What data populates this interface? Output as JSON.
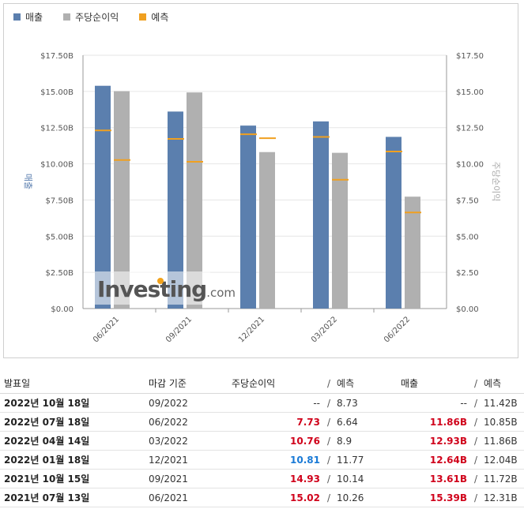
{
  "legend": {
    "revenue": "매출",
    "eps": "주당순이익",
    "forecast": "예측"
  },
  "colors": {
    "revenue": "#5b7fae",
    "eps": "#b0b0b0",
    "forecast": "#f0a020",
    "miss": "#d0021b",
    "beat": "#1a7ad6"
  },
  "watermark": {
    "brand": "Investing",
    "suffix": ".com"
  },
  "chart_data": {
    "type": "bar",
    "categories": [
      "06/2021",
      "09/2021",
      "12/2021",
      "03/2022",
      "06/2022"
    ],
    "series": [
      {
        "name": "매출",
        "axis": "left",
        "values": [
          15.39,
          13.61,
          12.64,
          12.93,
          11.86
        ],
        "forecast": [
          12.31,
          11.72,
          12.04,
          11.86,
          10.85
        ]
      },
      {
        "name": "주당순이익",
        "axis": "right",
        "values": [
          15.02,
          14.93,
          10.81,
          10.76,
          7.73
        ],
        "forecast": [
          10.26,
          10.14,
          11.77,
          8.9,
          6.64
        ]
      }
    ],
    "ylabel": "매출",
    "ylabel_right": "주당순이익",
    "ylim": [
      0,
      17.5
    ],
    "ylim_right": [
      0,
      17.5
    ],
    "yticks": [
      "$0.00",
      "$2.50B",
      "$5.00B",
      "$7.50B",
      "$10.00B",
      "$12.50B",
      "$15.00B",
      "$17.50B"
    ],
    "yticks_right": [
      "$0.00",
      "$2.50",
      "$5.00",
      "$7.50",
      "$10.00",
      "$12.50",
      "$15.00",
      "$17.50"
    ],
    "legend_position": "top-left",
    "grid": true
  },
  "table": {
    "headers": {
      "date": "발표일",
      "period": "마감 기준",
      "eps": "주당순이익",
      "eps_forecast": "예측",
      "revenue": "매출",
      "revenue_forecast": "예측",
      "slash": "/"
    },
    "rows": [
      {
        "date": "2022년 10월 18일",
        "period": "09/2022",
        "eps": "--",
        "eps_forecast": "8.73",
        "revenue": "--",
        "revenue_forecast": "11.42B",
        "eps_style": "neutral",
        "rev_style": "neutral"
      },
      {
        "date": "2022년 07월 18일",
        "period": "06/2022",
        "eps": "7.73",
        "eps_forecast": "6.64",
        "revenue": "11.86B",
        "revenue_forecast": "10.85B",
        "eps_style": "neg",
        "rev_style": "neg"
      },
      {
        "date": "2022년 04월 14일",
        "period": "03/2022",
        "eps": "10.76",
        "eps_forecast": "8.9",
        "revenue": "12.93B",
        "revenue_forecast": "11.86B",
        "eps_style": "neg",
        "rev_style": "neg"
      },
      {
        "date": "2022년 01월 18일",
        "period": "12/2021",
        "eps": "10.81",
        "eps_forecast": "11.77",
        "revenue": "12.64B",
        "revenue_forecast": "12.04B",
        "eps_style": "pos",
        "rev_style": "neg"
      },
      {
        "date": "2021년 10월 15일",
        "period": "09/2021",
        "eps": "14.93",
        "eps_forecast": "10.14",
        "revenue": "13.61B",
        "revenue_forecast": "11.72B",
        "eps_style": "neg",
        "rev_style": "neg"
      },
      {
        "date": "2021년 07월 13일",
        "period": "06/2021",
        "eps": "15.02",
        "eps_forecast": "10.26",
        "revenue": "15.39B",
        "revenue_forecast": "12.31B",
        "eps_style": "neg",
        "rev_style": "neg"
      }
    ]
  }
}
